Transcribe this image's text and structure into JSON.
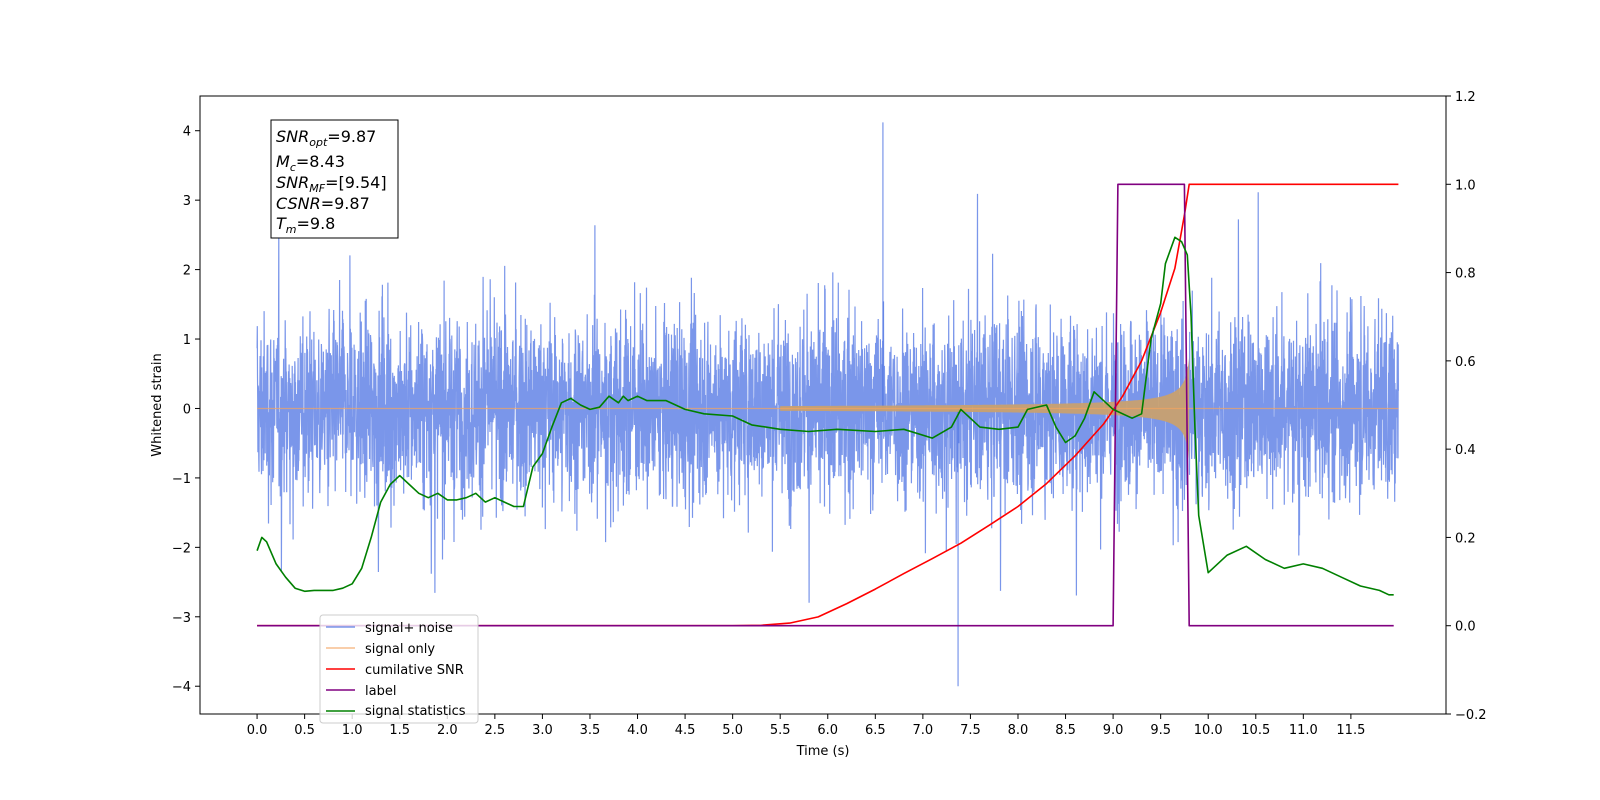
{
  "chart_data": {
    "type": "line",
    "title": "",
    "xlabel": "Time (s)",
    "ylabel": "Whitened strain",
    "y2label": "",
    "xlim": [
      -0.6,
      12.5
    ],
    "ylim": [
      -4.4,
      4.5
    ],
    "y2lim": [
      -0.2,
      1.2
    ],
    "x_ticks": [
      "0.0",
      "0.5",
      "1.0",
      "1.5",
      "2.0",
      "2.5",
      "3.0",
      "3.5",
      "4.0",
      "4.5",
      "5.0",
      "5.5",
      "6.0",
      "6.5",
      "7.0",
      "7.5",
      "8.0",
      "8.5",
      "9.0",
      "9.5",
      "10.0",
      "10.5",
      "11.0",
      "11.5"
    ],
    "y_ticks": [
      "4",
      "3",
      "2",
      "1",
      "0",
      "−1",
      "−2",
      "−3",
      "−4"
    ],
    "y2_ticks": [
      "1.2",
      "1.0",
      "0.8",
      "0.6",
      "0.4",
      "0.2",
      "0.0",
      "−0.2"
    ],
    "grid": false,
    "legend_position": "lower-left",
    "info_box": {
      "snr_opt": {
        "base": "SNR",
        "sub": "opt",
        "value": "=9.87"
      },
      "mc": {
        "base": "M",
        "sub": "c",
        "value": "=8.43"
      },
      "snr_mf": {
        "base": "SNR",
        "sub": "MF",
        "value": "=[9.54]"
      },
      "csnr": {
        "base": "CSNR",
        "sub": "",
        "value": "=9.87"
      },
      "tm": {
        "base": "T",
        "sub": "m",
        "value": "=9.8"
      }
    },
    "series": [
      {
        "name": "signal+ noise",
        "color": "#4169e1",
        "axis": "left",
        "x_range": [
          0.0,
          12.0
        ],
        "noise_std": 1.05,
        "peak_max": 4.12,
        "peak_min": -4.0
      },
      {
        "name": "signal only",
        "color": "#f4a460",
        "axis": "left",
        "x_range": [
          0.0,
          12.0
        ],
        "chirp_start": 5.5,
        "chirp_peak_time": 9.8,
        "chirp_peak_amplitude": 0.75
      },
      {
        "name": "cumilative SNR",
        "color": "#ff0000",
        "axis": "right",
        "x": [
          0.0,
          5.0,
          5.3,
          5.6,
          5.9,
          6.2,
          6.5,
          6.8,
          7.1,
          7.4,
          7.7,
          8.0,
          8.3,
          8.6,
          8.9,
          9.1,
          9.3,
          9.5,
          9.65,
          9.75,
          9.8,
          12.0
        ],
        "values": [
          0.0,
          0.0,
          0.001,
          0.006,
          0.02,
          0.05,
          0.083,
          0.118,
          0.152,
          0.187,
          0.228,
          0.27,
          0.322,
          0.385,
          0.457,
          0.52,
          0.6,
          0.71,
          0.81,
          0.93,
          1.0,
          1.0
        ]
      },
      {
        "name": "label",
        "color": "#800080",
        "axis": "right",
        "x": [
          0.0,
          9.0,
          9.05,
          9.75,
          9.8,
          11.95
        ],
        "values": [
          0.0,
          0.0,
          1.0,
          1.0,
          0.0,
          0.0
        ]
      },
      {
        "name": "signal statistics",
        "color": "#008000",
        "axis": "right",
        "x": [
          0.0,
          0.05,
          0.1,
          0.2,
          0.3,
          0.4,
          0.5,
          0.6,
          0.7,
          0.8,
          0.9,
          1.0,
          1.1,
          1.2,
          1.3,
          1.4,
          1.5,
          1.6,
          1.7,
          1.8,
          1.9,
          2.0,
          2.1,
          2.2,
          2.3,
          2.4,
          2.5,
          2.6,
          2.7,
          2.8,
          2.9,
          3.0,
          3.1,
          3.2,
          3.3,
          3.4,
          3.5,
          3.6,
          3.7,
          3.8,
          3.85,
          3.9,
          4.0,
          4.1,
          4.3,
          4.5,
          4.7,
          5.0,
          5.2,
          5.5,
          5.8,
          6.1,
          6.5,
          6.8,
          7.1,
          7.3,
          7.4,
          7.6,
          7.8,
          8.0,
          8.1,
          8.3,
          8.4,
          8.5,
          8.6,
          8.7,
          8.8,
          9.0,
          9.2,
          9.3,
          9.4,
          9.5,
          9.55,
          9.65,
          9.72,
          9.78,
          9.82,
          9.86,
          9.9,
          10.0,
          10.2,
          10.4,
          10.6,
          10.8,
          11.0,
          11.2,
          11.4,
          11.6,
          11.8,
          11.9,
          11.95
        ],
        "values": [
          0.17,
          0.2,
          0.19,
          0.14,
          0.11,
          0.085,
          0.078,
          0.08,
          0.08,
          0.08,
          0.085,
          0.095,
          0.13,
          0.2,
          0.28,
          0.32,
          0.34,
          0.32,
          0.3,
          0.29,
          0.3,
          0.285,
          0.285,
          0.29,
          0.3,
          0.28,
          0.29,
          0.28,
          0.27,
          0.27,
          0.36,
          0.39,
          0.45,
          0.505,
          0.515,
          0.5,
          0.49,
          0.495,
          0.52,
          0.505,
          0.52,
          0.51,
          0.52,
          0.51,
          0.51,
          0.49,
          0.48,
          0.475,
          0.455,
          0.445,
          0.44,
          0.445,
          0.44,
          0.445,
          0.425,
          0.45,
          0.49,
          0.45,
          0.445,
          0.45,
          0.49,
          0.5,
          0.45,
          0.415,
          0.43,
          0.47,
          0.53,
          0.49,
          0.47,
          0.48,
          0.65,
          0.73,
          0.82,
          0.88,
          0.87,
          0.84,
          0.7,
          0.45,
          0.25,
          0.12,
          0.16,
          0.18,
          0.15,
          0.13,
          0.14,
          0.13,
          0.11,
          0.09,
          0.08,
          0.07,
          0.07
        ]
      }
    ]
  }
}
